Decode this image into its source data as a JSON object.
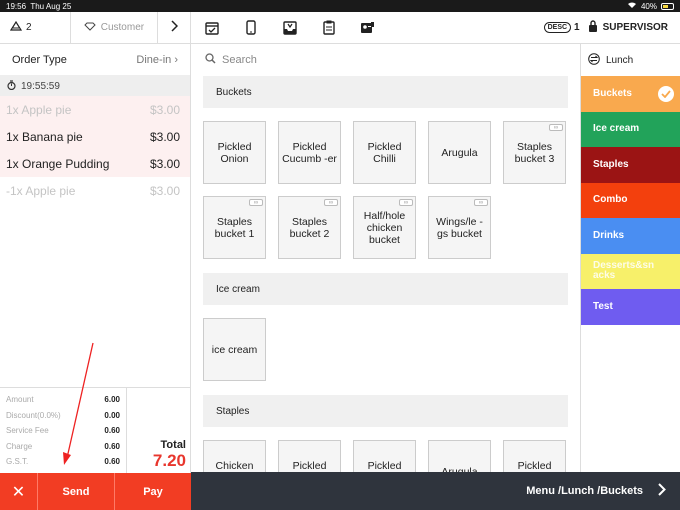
{
  "status_bar": {
    "time": "19:56",
    "date": "Thu Aug 25",
    "battery": "40%"
  },
  "left_top": {
    "seats": "2",
    "customer_placeholder": "Customer"
  },
  "order_type": {
    "label": "Order Type",
    "value": "Dine-in"
  },
  "timer": "19:55:59",
  "items": [
    {
      "name": "1x Apple pie",
      "price": "$3.00",
      "style": "faded-pink"
    },
    {
      "name": "1x Banana pie",
      "price": "$3.00",
      "style": "pink"
    },
    {
      "name": "1x Orange Pudding",
      "price": "$3.00",
      "style": "pink"
    },
    {
      "name": "-1x Apple pie",
      "price": "$3.00",
      "style": "faded"
    }
  ],
  "totals": {
    "lines": [
      {
        "label": "Amount",
        "value": "6.00"
      },
      {
        "label": "Discount(0.0%)",
        "value": "0.00"
      },
      {
        "label": "Service Fee",
        "value": "0.60"
      },
      {
        "label": "Charge",
        "value": "0.60"
      },
      {
        "label": "G.S.T.",
        "value": "0.60"
      }
    ],
    "total_label": "Total",
    "total_value": "7.20"
  },
  "actions": {
    "cancel": "✕",
    "send": "Send",
    "pay": "Pay"
  },
  "toolbar": {
    "desc_label": "DESC",
    "desc_count": "1",
    "user": "SUPERVISOR"
  },
  "search": {
    "placeholder": "Search"
  },
  "sections": [
    {
      "title": "Buckets",
      "tiles": [
        {
          "label": "Pickled Onion",
          "linked": false
        },
        {
          "label": "Pickled Cucumb -er",
          "linked": false
        },
        {
          "label": "Pickled Chilli",
          "linked": false
        },
        {
          "label": "Arugula",
          "linked": false
        },
        {
          "label": "Staples bucket 3",
          "linked": true
        },
        {
          "label": "Staples bucket 1",
          "linked": true
        },
        {
          "label": "Staples bucket 2",
          "linked": true
        },
        {
          "label": "Half/hole chicken bucket",
          "linked": true
        },
        {
          "label": "Wings/le -gs bucket",
          "linked": true
        }
      ]
    },
    {
      "title": "Ice cream",
      "tiles": [
        {
          "label": "ice cream",
          "linked": false
        }
      ]
    },
    {
      "title": "Staples",
      "tiles": [
        {
          "label": "Chicken sandwich",
          "linked": false
        },
        {
          "label": "Pickled Cucumb -er",
          "linked": false
        },
        {
          "label": "Pickled Chilli",
          "linked": false
        },
        {
          "label": "Arugula",
          "linked": false
        },
        {
          "label": "Pickled Onion",
          "linked": false
        }
      ]
    }
  ],
  "menu_header": "Lunch",
  "categories": [
    {
      "label": "Buckets",
      "color": "#f9a94e",
      "selected": true
    },
    {
      "label": "Ice cream",
      "color": "#22a35a",
      "selected": false
    },
    {
      "label": "Staples",
      "color": "#9b1414",
      "selected": false
    },
    {
      "label": "Combo",
      "color": "#f3400d",
      "selected": false
    },
    {
      "label": "Drinks",
      "color": "#4a8ef2",
      "selected": false
    },
    {
      "label": "Desserts&sn acks",
      "color": "#f7f06a",
      "selected": false
    },
    {
      "label": "Test",
      "color": "#6f5cf0",
      "selected": false
    }
  ],
  "breadcrumb": "Menu /Lunch /Buckets"
}
